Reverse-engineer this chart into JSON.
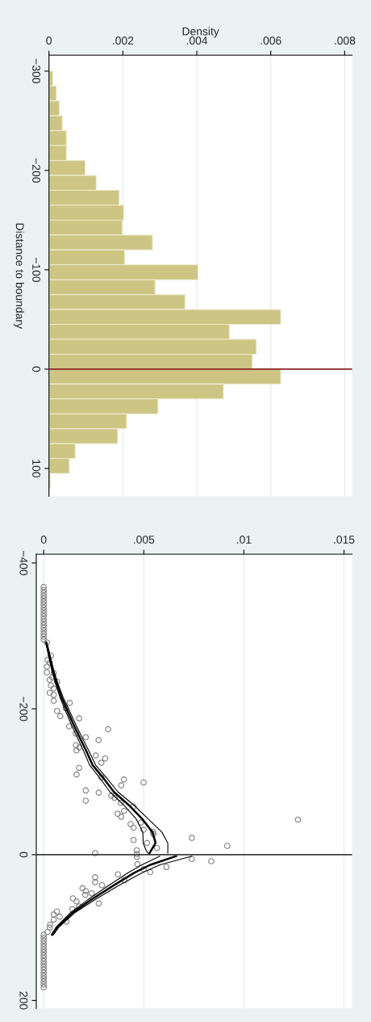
{
  "chart_data": [
    {
      "type": "histogram",
      "orientation": "horizontal",
      "xlabel": "Density",
      "ylabel": "Distance to boundary",
      "bins": [
        -300,
        -285,
        -270,
        -255,
        -240,
        -225,
        -210,
        -195,
        -180,
        -165,
        -150,
        -135,
        -120,
        -105,
        -90,
        -75,
        -60,
        -45,
        -30,
        -15,
        0,
        15,
        30,
        45,
        60,
        75,
        90,
        105,
        120
      ],
      "values": [
        0.0001,
        0.0002,
        0.00028,
        0.00036,
        0.00047,
        0.00047,
        0.00098,
        0.00128,
        0.0019,
        0.00202,
        0.00198,
        0.0028,
        0.00205,
        0.00403,
        0.00287,
        0.00368,
        0.00627,
        0.00488,
        0.00561,
        0.0055,
        0.00627,
        0.00472,
        0.00295,
        0.0021,
        0.00186,
        0.00071,
        0.00055,
        4e-05
      ],
      "color": "#cdc583",
      "xlim": [
        0,
        0.0082
      ],
      "xticks": [
        0,
        {
          "value": 0.002,
          "label": ".002"
        },
        {
          "value": 0.004,
          "label": ".004"
        },
        {
          "value": 0.006,
          "label": ".006"
        },
        {
          "value": 0.008,
          "label": ".008"
        }
      ],
      "ylim": [
        128,
        -316
      ],
      "yticks": [
        {
          "value": -300,
          "label": "−300"
        },
        {
          "value": -200,
          "label": "−200"
        },
        {
          "value": -100,
          "label": "−100"
        },
        0,
        100
      ],
      "ref_lines": [
        {
          "axis": "y",
          "value": 0,
          "color": "#8b2323"
        }
      ],
      "grid": "x"
    },
    {
      "type": "scatter",
      "series": [
        {
          "type": "scatter",
          "marker": "circle",
          "color": "#7f7f7f",
          "x": [
            0,
            0,
            0,
            0,
            0,
            0,
            0,
            0,
            0,
            0,
            0,
            0,
            0,
            0,
            0,
            0,
            0,
            0,
            0,
            0.00016,
            0.00036,
            0.0002,
            0.0003,
            0.00016,
            0.00016,
            0.0005,
            0.00043,
            0.0003,
            0.00067,
            0.00036,
            0.0005,
            0.0003,
            0.0005,
            0.0005,
            0.0013,
            0.00067,
            0.00083,
            0.0011,
            0.00177,
            0.00127,
            0.00161,
            0.0021,
            0.00274,
            0.00322,
            0.00161,
            0.00177,
            0.00164,
            0.0026,
            0.00307,
            0.00288,
            0.00177,
            0.00164,
            0.00288,
            0.00401,
            0.00499,
            0.00387,
            0.0021,
            0.00275,
            0.00338,
            0.00354,
            0.00385,
            0.0021,
            0.00449,
            0.00401,
            0.00369,
            0.00387,
            0.00434,
            0.00449,
            0.00485,
            0.00499,
            0.00546,
            0.00548,
            0.00449,
            0.00516,
            0.0074,
            0.0127,
            0.00917,
            0.00566,
            0.00465,
            0.00257,
            0.00465,
            0.00465,
            0.0074,
            0.00837,
            0.00468,
            0.00613,
            0.00499,
            0.00532,
            0.00371,
            0.00257,
            0.00402,
            0.00257,
            0.00291,
            0.00194,
            0.0021,
            0.0024,
            0.00208,
            0.00146,
            0.00164,
            0.00275,
            0.00177,
            0.00143,
            0.00066,
            0.0005,
            0.0008,
            0.0005,
            0.00114,
            0.00032,
            0.0003,
            0.0002,
            0,
            0,
            0,
            0,
            0,
            0,
            0,
            0,
            0,
            0,
            0,
            0,
            0,
            0,
            0,
            0,
            0,
            0,
            0
          ],
          "values": [
            -367,
            -363,
            -359,
            -355,
            -351,
            -347,
            -343,
            -339,
            -335,
            -331,
            -327,
            -323,
            -319,
            -315,
            -311,
            -307,
            -303,
            -299,
            -295,
            -291,
            -273,
            -267,
            -263,
            -258,
            -250,
            -249,
            -243,
            -240,
            -237,
            -232,
            -228,
            -222,
            -219,
            -211,
            -208,
            -197,
            -190,
            -201,
            -187,
            -176,
            -166,
            -161,
            -157,
            -172,
            -150,
            -147,
            -143,
            -136,
            -132,
            -126,
            -119,
            -110,
            -106,
            -103,
            -99,
            -95,
            -88,
            -85,
            -81,
            -78,
            -71,
            -74,
            -66,
            -60,
            -56,
            -52,
            -42,
            -37,
            -44,
            -34,
            -31,
            -28,
            -20,
            -16,
            -23,
            -48,
            -12,
            -9,
            -6,
            -2,
            -1,
            3,
            6,
            9,
            13,
            17,
            20,
            24,
            27,
            31,
            35,
            38,
            42,
            46,
            50,
            53,
            55,
            60,
            64,
            67,
            71,
            75,
            78,
            82,
            85,
            89,
            92,
            96,
            100,
            106,
            110,
            114,
            118,
            122,
            126,
            130,
            134,
            138,
            142,
            146,
            150,
            154,
            158,
            162,
            166,
            170,
            174,
            178,
            182
          ]
        },
        {
          "type": "line",
          "color": "#000000",
          "x": [
            0.00013,
            0.0003,
            0.00046,
            0.00066,
            0.0009,
            0.00119,
            0.0015,
            0.00181,
            0.00213,
            0.00244,
            0.00298,
            0.00351,
            0.00425,
            0.00492,
            0.00543,
            0.00559,
            0.00539,
            0.00528
          ],
          "values": [
            -291,
            -271,
            -252,
            -234,
            -215,
            -197,
            -178,
            -160,
            -142,
            -123,
            -105,
            -86,
            -68,
            -49,
            -31,
            -16,
            -7,
            -2
          ]
        },
        {
          "type": "line",
          "color": "#000000",
          "x": [
            0.0001,
            0.00026,
            0.00041,
            0.0006,
            0.00082,
            0.00109,
            0.00139,
            0.00169,
            0.002,
            0.00229,
            0.00281,
            0.00331,
            0.004,
            0.00462,
            0.00495,
            0.00497,
            0.0051,
            0.0052
          ],
          "values": [
            -291,
            -271,
            -252,
            -234,
            -215,
            -197,
            -178,
            -160,
            -142,
            -123,
            -105,
            -86,
            -68,
            -49,
            -31,
            -16,
            -7,
            -2
          ]
        },
        {
          "type": "line",
          "color": "#000000",
          "x": [
            0.00016,
            0.00034,
            0.00051,
            0.00072,
            0.00098,
            0.00129,
            0.00161,
            0.00193,
            0.00226,
            0.00259,
            0.00315,
            0.00371,
            0.0045,
            0.00522,
            0.0059,
            0.0062,
            0.0062,
            0.0062
          ],
          "values": [
            -291,
            -271,
            -252,
            -234,
            -215,
            -197,
            -178,
            -160,
            -142,
            -123,
            -105,
            -86,
            -68,
            -49,
            -31,
            -16,
            -7,
            -2
          ]
        },
        {
          "type": "line",
          "color": "#000000",
          "x": [
            0.00662,
            0.00532,
            0.00452,
            0.00345,
            0.00237,
            0.00143,
            0.0007,
            0.00043
          ],
          "values": [
            2,
            14,
            25,
            43,
            62,
            80,
            99,
            110
          ]
        },
        {
          "type": "line",
          "color": "#000000",
          "x": [
            0.0058,
            0.0049,
            0.0042,
            0.0032,
            0.0022,
            0.00132,
            0.00063,
            0.00038
          ],
          "values": [
            2,
            14,
            25,
            43,
            62,
            80,
            99,
            110
          ]
        },
        {
          "type": "line",
          "color": "#000000",
          "x": [
            0.0074,
            0.0058,
            0.0049,
            0.0037,
            0.00255,
            0.00154,
            0.00077,
            0.00048
          ],
          "values": [
            2,
            14,
            25,
            43,
            62,
            80,
            99,
            110
          ]
        }
      ],
      "xlim": [
        -0.00037,
        0.0154
      ],
      "xticks": [
        0,
        {
          "value": 0.005,
          "label": ".005"
        },
        {
          "value": 0.01,
          "label": ".01"
        },
        {
          "value": 0.015,
          "label": ".015"
        }
      ],
      "ylim": [
        211,
        -412
      ],
      "yticks": [
        {
          "value": -400,
          "label": "−400"
        },
        {
          "value": -200,
          "label": "−200"
        },
        0,
        200
      ],
      "ref_lines": [
        {
          "axis": "y",
          "value": 0,
          "color": "#3f3f3f"
        }
      ],
      "grid": "x"
    }
  ]
}
